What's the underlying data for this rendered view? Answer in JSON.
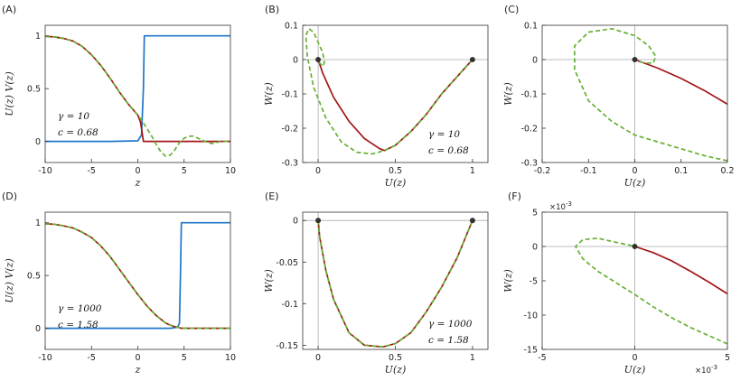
{
  "colors": {
    "blue": "#1f77c8",
    "red": "#a31515",
    "green": "#66b032",
    "axis": "#333333",
    "refline": "#aaaaaa",
    "point": "#333333"
  },
  "panels": [
    {
      "label": "(A)",
      "type": "line",
      "xlabel": "z",
      "ylabel": "U(z)   V(z)",
      "xlim": [
        -10,
        10
      ],
      "ylim": [
        -0.2,
        1.1
      ],
      "xticks": [
        -10,
        -5,
        0,
        5,
        10
      ],
      "xticklabels": [
        "-10",
        "-5",
        "0",
        "5",
        "10"
      ],
      "yticks": [
        0,
        0.5,
        1
      ],
      "yticklabels": [
        "0",
        "0.5",
        "1"
      ],
      "annotations": [
        "γ = 10",
        "c = 0.68"
      ],
      "series": [
        {
          "color": "blue",
          "style": "solid",
          "x": [
            -10,
            -3,
            0,
            0.4,
            0.6,
            0.7,
            10
          ],
          "y": [
            0,
            0,
            0.005,
            0.06,
            0.5,
            1,
            1
          ]
        },
        {
          "color": "red",
          "style": "solid",
          "x": [
            -10,
            -9,
            -8,
            -7,
            -6,
            -5,
            -4,
            -3,
            -2,
            -1,
            0,
            0.3,
            0.6,
            10
          ],
          "y": [
            0.995,
            0.99,
            0.975,
            0.95,
            0.9,
            0.82,
            0.72,
            0.6,
            0.47,
            0.35,
            0.25,
            0.18,
            0,
            0
          ]
        },
        {
          "color": "green",
          "style": "dashed",
          "x": [
            -10,
            -9,
            -8,
            -7,
            -6,
            -5,
            -4,
            -3,
            -2,
            -1,
            0,
            0.5,
            1,
            1.5,
            2,
            2.5,
            3,
            3.5,
            4,
            4.5,
            5,
            5.5,
            6,
            6.5,
            7,
            7.5,
            8,
            8.5,
            9,
            9.5,
            10
          ],
          "y": [
            0.995,
            0.99,
            0.975,
            0.95,
            0.9,
            0.82,
            0.72,
            0.6,
            0.47,
            0.35,
            0.25,
            0.19,
            0.12,
            0.05,
            -0.03,
            -0.1,
            -0.14,
            -0.13,
            -0.08,
            -0.01,
            0.03,
            0.05,
            0.05,
            0.03,
            0.01,
            -0.01,
            -0.02,
            -0.01,
            0,
            0,
            0
          ]
        }
      ],
      "points": []
    },
    {
      "label": "(B)",
      "type": "line",
      "xlabel": "U(z)",
      "ylabel": "W(z)",
      "xlim": [
        -0.1,
        1.1
      ],
      "ylim": [
        -0.3,
        0.1
      ],
      "xticks": [
        0,
        0.5,
        1
      ],
      "xticklabels": [
        "0",
        "0.5",
        "1"
      ],
      "yticks": [
        -0.3,
        -0.2,
        -0.1,
        0,
        0.1
      ],
      "yticklabels": [
        "-0.3",
        "-0.2",
        "-0.1",
        "0",
        "0.1"
      ],
      "annotations": [
        "γ = 10",
        "c = 0.68"
      ],
      "series": [
        {
          "color": "red",
          "style": "solid",
          "x": [
            0,
            0.03,
            0.1,
            0.2,
            0.3,
            0.4,
            0.43,
            0.5,
            0.6,
            0.7,
            0.8,
            0.9,
            1
          ],
          "y": [
            0,
            -0.04,
            -0.11,
            -0.18,
            -0.23,
            -0.26,
            -0.265,
            -0.25,
            -0.21,
            -0.16,
            -0.1,
            -0.05,
            0
          ]
        },
        {
          "color": "green",
          "style": "dashed",
          "x": [
            1,
            0.9,
            0.8,
            0.7,
            0.6,
            0.5,
            0.43,
            0.35,
            0.25,
            0.15,
            0.05,
            -0.03,
            -0.07,
            -0.08,
            -0.06,
            -0.03,
            0,
            0.03,
            0.04,
            0.03,
            0.01,
            0
          ],
          "y": [
            0,
            -0.05,
            -0.1,
            -0.16,
            -0.21,
            -0.25,
            -0.265,
            -0.275,
            -0.27,
            -0.24,
            -0.17,
            -0.08,
            0.01,
            0.07,
            0.09,
            0.08,
            0.05,
            0.02,
            -0.01,
            -0.02,
            -0.01,
            0
          ]
        }
      ],
      "points": [
        [
          0,
          0
        ],
        [
          1,
          0
        ]
      ]
    },
    {
      "label": "(C)",
      "type": "line",
      "xlabel": "U(z)",
      "ylabel": "W(z)",
      "xlim": [
        -0.2,
        0.2
      ],
      "ylim": [
        -0.3,
        0.1
      ],
      "xticks": [
        -0.2,
        -0.1,
        0,
        0.1,
        0.2
      ],
      "xticklabels": [
        "-0.2",
        "-0.1",
        "0",
        "0.1",
        "0.2"
      ],
      "yticks": [
        -0.3,
        -0.2,
        -0.1,
        0,
        0.1
      ],
      "yticklabels": [
        "-0.3",
        "-0.2",
        "-0.1",
        "0",
        "0.1"
      ],
      "annotations": [],
      "series": [
        {
          "color": "red",
          "style": "solid",
          "x": [
            0,
            0.05,
            0.1,
            0.15,
            0.2
          ],
          "y": [
            0,
            -0.025,
            -0.055,
            -0.09,
            -0.13
          ]
        },
        {
          "color": "green",
          "style": "dashed",
          "x": [
            0.2,
            0.15,
            0.1,
            0.05,
            0,
            -0.05,
            -0.1,
            -0.13,
            -0.13,
            -0.1,
            -0.05,
            0,
            0.03,
            0.045,
            0.04,
            0.02,
            0.005,
            0
          ],
          "y": [
            -0.295,
            -0.28,
            -0.26,
            -0.24,
            -0.22,
            -0.18,
            -0.12,
            -0.03,
            0.04,
            0.08,
            0.09,
            0.07,
            0.04,
            0.01,
            -0.01,
            -0.01,
            -0.003,
            0
          ]
        }
      ],
      "points": [
        [
          0,
          0
        ]
      ]
    },
    {
      "label": "(D)",
      "type": "line",
      "xlabel": "z",
      "ylabel": "U(z)   V(z)",
      "xlim": [
        -10,
        10
      ],
      "ylim": [
        -0.2,
        1.1
      ],
      "xticks": [
        -10,
        -5,
        0,
        5,
        10
      ],
      "xticklabels": [
        "-10",
        "-5",
        "0",
        "5",
        "10"
      ],
      "yticks": [
        0,
        0.5,
        1
      ],
      "yticklabels": [
        "0",
        "0.5",
        "1"
      ],
      "annotations": [
        "γ = 1000",
        "c = 1.58"
      ],
      "series": [
        {
          "color": "blue",
          "style": "solid",
          "x": [
            -10,
            3.5,
            4.3,
            4.5,
            4.6,
            4.7,
            10
          ],
          "y": [
            0,
            0,
            0.01,
            0.05,
            0.5,
            1,
            1
          ]
        },
        {
          "color": "red",
          "style": "solid",
          "x": [
            -10,
            -9,
            -8,
            -7,
            -6,
            -5,
            -4,
            -3,
            -2,
            -1,
            0,
            1,
            2,
            3,
            3.5,
            4,
            4.3,
            4.7,
            10
          ],
          "y": [
            0.99,
            0.985,
            0.97,
            0.95,
            0.91,
            0.86,
            0.78,
            0.68,
            0.56,
            0.44,
            0.32,
            0.21,
            0.12,
            0.05,
            0.03,
            0.015,
            0.01,
            0,
            0
          ]
        },
        {
          "color": "green",
          "style": "dashed",
          "x": [
            -10,
            -9,
            -8,
            -7,
            -6,
            -5,
            -4,
            -3,
            -2,
            -1,
            0,
            1,
            2,
            3,
            3.5,
            4,
            4.3,
            4.7,
            10
          ],
          "y": [
            0.99,
            0.985,
            0.97,
            0.95,
            0.91,
            0.86,
            0.78,
            0.68,
            0.56,
            0.44,
            0.32,
            0.21,
            0.12,
            0.05,
            0.03,
            0.015,
            0.01,
            0,
            0
          ]
        }
      ],
      "points": []
    },
    {
      "label": "(E)",
      "type": "line",
      "xlabel": "U(z)",
      "ylabel": "W(z)",
      "xlim": [
        -0.1,
        1.1
      ],
      "ylim": [
        -0.155,
        0.01
      ],
      "xticks": [
        0,
        0.5,
        1
      ],
      "xticklabels": [
        "0",
        "0.5",
        "1"
      ],
      "yticks": [
        -0.15,
        -0.1,
        -0.05,
        0
      ],
      "yticklabels": [
        "-0.15",
        "-0.1",
        "-0.05",
        "0"
      ],
      "annotations": [
        "γ = 1000",
        "c = 1.58"
      ],
      "series": [
        {
          "color": "red",
          "style": "solid",
          "x": [
            0,
            0.01,
            0.05,
            0.1,
            0.2,
            0.3,
            0.42,
            0.5,
            0.6,
            0.7,
            0.8,
            0.9,
            1
          ],
          "y": [
            0,
            -0.02,
            -0.06,
            -0.095,
            -0.135,
            -0.15,
            -0.152,
            -0.148,
            -0.135,
            -0.11,
            -0.08,
            -0.045,
            0
          ]
        },
        {
          "color": "green",
          "style": "dashed",
          "x": [
            0,
            0.01,
            0.05,
            0.1,
            0.2,
            0.3,
            0.42,
            0.5,
            0.6,
            0.7,
            0.8,
            0.9,
            1
          ],
          "y": [
            0,
            -0.02,
            -0.06,
            -0.095,
            -0.135,
            -0.15,
            -0.152,
            -0.148,
            -0.135,
            -0.11,
            -0.08,
            -0.045,
            0
          ]
        }
      ],
      "points": [
        [
          0,
          0
        ],
        [
          1,
          0
        ]
      ]
    },
    {
      "label": "(F)",
      "type": "line",
      "xlabel": "U(z)",
      "ylabel": "W(z)",
      "xlim": [
        -5,
        5
      ],
      "ylim": [
        -15,
        5
      ],
      "xticks": [
        -5,
        0,
        5
      ],
      "xticklabels": [
        "-5",
        "0",
        "5"
      ],
      "yticks": [
        -15,
        -10,
        -5,
        0,
        5
      ],
      "yticklabels": [
        "-15",
        "-10",
        "-5",
        "0",
        "5"
      ],
      "x_exponent": "×10",
      "x_exponent_power": "-3",
      "y_exponent": "×10",
      "y_exponent_power": "-3",
      "annotations": [],
      "series": [
        {
          "color": "red",
          "style": "solid",
          "x": [
            0,
            1,
            2,
            3,
            4,
            5
          ],
          "y": [
            0,
            -0.9,
            -2.1,
            -3.6,
            -5.2,
            -6.9
          ]
        },
        {
          "color": "green",
          "style": "dashed",
          "x": [
            5,
            4,
            3,
            2,
            1,
            0,
            -1,
            -2,
            -2.8,
            -3.2,
            -2.8,
            -2,
            -1,
            -0.3,
            0
          ],
          "y": [
            -14.2,
            -13,
            -11.8,
            -10.4,
            -8.8,
            -7,
            -5.3,
            -3.6,
            -1.8,
            0,
            1,
            1.2,
            0.6,
            0.2,
            0
          ]
        }
      ],
      "points": [
        [
          0,
          0
        ]
      ]
    }
  ]
}
